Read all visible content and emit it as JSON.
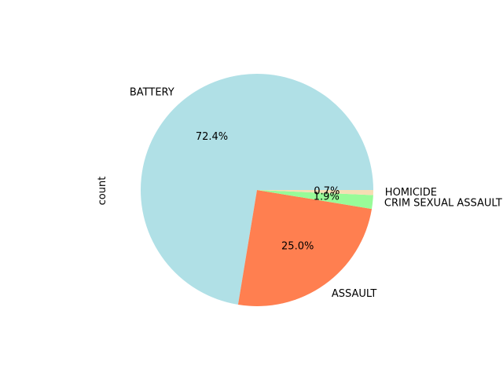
{
  "chart_data": {
    "type": "pie",
    "title": "",
    "ylabel": "count",
    "start_angle_deg": 0,
    "direction": "counterclockwise",
    "slices": [
      {
        "label": "BATTERY",
        "percent": 72.4,
        "pct_label": "72.4%",
        "color": "#b0e0e6"
      },
      {
        "label": "ASSAULT",
        "percent": 25.0,
        "pct_label": "25.0%",
        "color": "#ff7f50"
      },
      {
        "label": "CRIM SEXUAL ASSAULT",
        "percent": 1.9,
        "pct_label": "1.9%",
        "color": "#98fb98"
      },
      {
        "label": "HOMICIDE",
        "percent": 0.7,
        "pct_label": "0.7%",
        "color": "#f5deb3"
      }
    ]
  }
}
